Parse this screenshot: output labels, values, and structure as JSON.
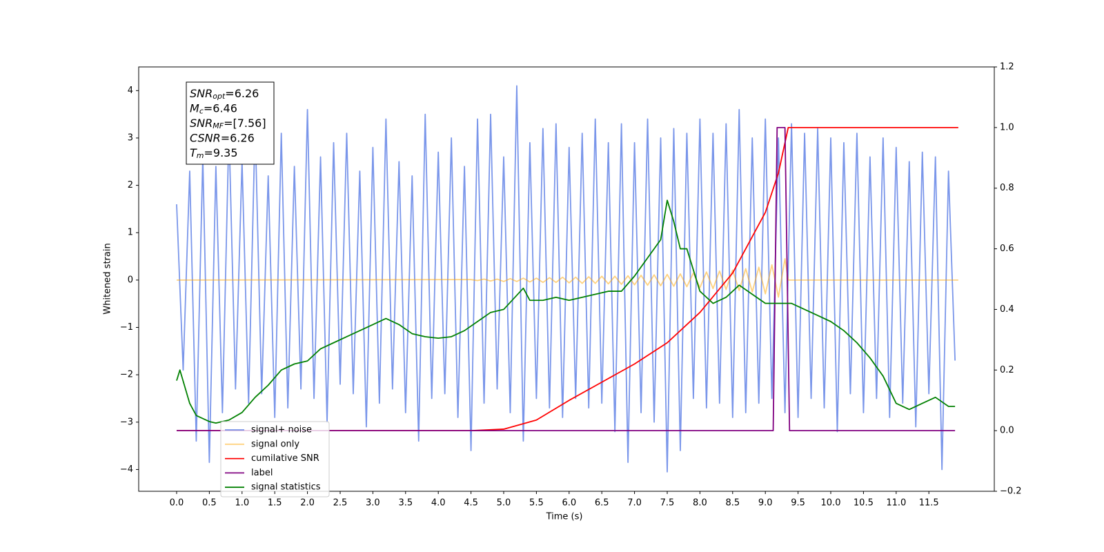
{
  "chart_data": {
    "type": "line",
    "x_label": "Time (s)",
    "y_label": "Whitened strain",
    "xlim": [
      -0.58,
      12.5
    ],
    "xticks": [
      {
        "value": 0,
        "label": "0.0"
      },
      0.5,
      {
        "value": 1,
        "label": "1.0"
      },
      1.5,
      {
        "value": 2,
        "label": "2.0"
      },
      2.5,
      {
        "value": 3,
        "label": "3.0"
      },
      3.5,
      {
        "value": 4,
        "label": "4.0"
      },
      4.5,
      {
        "value": 5,
        "label": "5.0"
      },
      5.5,
      {
        "value": 6,
        "label": "6.0"
      },
      6.5,
      {
        "value": 7,
        "label": "7.0"
      },
      7.5,
      {
        "value": 8,
        "label": "8.0"
      },
      8.5,
      {
        "value": 9,
        "label": "9.0"
      },
      9.5,
      {
        "value": 10,
        "label": "10.0"
      },
      10.5,
      {
        "value": 11,
        "label": "11.0"
      },
      11.5
    ],
    "ylim": [
      -4.46,
      4.5
    ],
    "yticks": [
      {
        "value": -4,
        "label": "−4"
      },
      {
        "value": -3,
        "label": "−3"
      },
      {
        "value": -2,
        "label": "−2"
      },
      {
        "value": -1,
        "label": "−1"
      },
      0,
      1,
      2,
      3,
      4
    ],
    "y2lim": [
      -0.2,
      1.2
    ],
    "y2ticks": [
      {
        "value": -0.2,
        "label": "−0.2"
      },
      {
        "value": 0,
        "label": "0.0"
      },
      0.2,
      0.4,
      0.6,
      0.8,
      {
        "value": 1,
        "label": "1.0"
      },
      1.2
    ],
    "annotations": [
      {
        "symbol": "SNR",
        "subscript": "opt",
        "text": "=6.26"
      },
      {
        "symbol": "M",
        "subscript": "c",
        "text": "=6.46"
      },
      {
        "symbol": "SNR",
        "subscript": "MF",
        "text": "=[7.56]"
      },
      {
        "symbol": "CSNR",
        "text": "=6.26"
      },
      {
        "symbol": "T",
        "subscript": "m",
        "text": "=9.35"
      }
    ],
    "series": [
      {
        "name": "signal+ noise",
        "color": "#4169e1",
        "alpha": 0.7,
        "x": [
          0.0,
          0.1,
          0.2,
          0.3,
          0.4,
          0.5,
          0.6,
          0.7,
          0.8,
          0.9,
          1.0,
          1.1,
          1.2,
          1.3,
          1.4,
          1.5,
          1.6,
          1.7,
          1.8,
          1.9,
          2.0,
          2.1,
          2.2,
          2.3,
          2.4,
          2.5,
          2.6,
          2.7,
          2.8,
          2.9,
          3.0,
          3.1,
          3.2,
          3.3,
          3.4,
          3.5,
          3.6,
          3.7,
          3.8,
          3.9,
          4.0,
          4.1,
          4.2,
          4.3,
          4.4,
          4.5,
          4.6,
          4.7,
          4.8,
          4.9,
          5.0,
          5.1,
          5.2,
          5.3,
          5.4,
          5.5,
          5.6,
          5.7,
          5.8,
          5.9,
          6.0,
          6.1,
          6.2,
          6.3,
          6.4,
          6.5,
          6.6,
          6.7,
          6.8,
          6.9,
          7.0,
          7.1,
          7.2,
          7.3,
          7.4,
          7.5,
          7.6,
          7.7,
          7.8,
          7.9,
          8.0,
          8.1,
          8.2,
          8.3,
          8.4,
          8.5,
          8.6,
          8.7,
          8.8,
          8.9,
          9.0,
          9.1,
          9.2,
          9.3,
          9.4,
          9.5,
          9.6,
          9.7,
          9.8,
          9.9,
          10.0,
          10.1,
          10.2,
          10.3,
          10.4,
          10.5,
          10.6,
          10.7,
          10.8,
          10.9,
          11.0,
          11.1,
          11.2,
          11.3,
          11.4,
          11.5,
          11.6,
          11.7,
          11.8,
          11.9
        ],
        "values": [
          1.6,
          -1.9,
          2.3,
          -3.4,
          2.6,
          -3.85,
          2.4,
          -2.8,
          3.2,
          -2.3,
          2.5,
          -2.6,
          3.3,
          -2.4,
          2.2,
          -2.9,
          3.1,
          -2.7,
          2.4,
          -2.3,
          3.6,
          -2.5,
          2.6,
          -3.0,
          2.9,
          -2.2,
          3.1,
          -2.4,
          2.3,
          -3.1,
          2.8,
          -2.6,
          3.4,
          -2.3,
          2.5,
          -2.8,
          2.2,
          -3.4,
          3.5,
          -2.5,
          2.7,
          -2.4,
          3.0,
          -2.9,
          2.4,
          -3.6,
          3.4,
          -2.6,
          3.5,
          -2.3,
          2.6,
          -2.8,
          4.1,
          -3.4,
          2.9,
          -2.5,
          3.2,
          -2.7,
          3.3,
          -2.9,
          2.8,
          -2.5,
          3.1,
          -2.7,
          3.4,
          -2.6,
          2.9,
          -3.2,
          3.3,
          -3.85,
          2.9,
          -2.8,
          3.4,
          -3.0,
          3.0,
          -4.05,
          3.2,
          -3.6,
          3.1,
          -2.5,
          3.4,
          -2.7,
          3.1,
          -2.6,
          3.3,
          -2.9,
          3.6,
          -2.8,
          3.0,
          -2.6,
          3.4,
          -2.5,
          3.0,
          -2.8,
          3.3,
          -2.9,
          3.1,
          -2.5,
          3.2,
          -2.7,
          3.0,
          -3.2,
          2.9,
          -2.4,
          3.1,
          -2.8,
          2.6,
          -2.5,
          3.0,
          -2.9,
          2.8,
          -2.6,
          2.5,
          -3.1,
          2.7,
          -2.4,
          2.6,
          -4.0,
          2.3,
          -1.7
        ]
      },
      {
        "name": "signal only",
        "color": "#ffa500",
        "alpha": 0.5,
        "x": [
          0.0,
          4.5,
          4.6,
          4.7,
          4.8,
          4.9,
          5.0,
          5.1,
          5.2,
          5.3,
          5.4,
          5.5,
          5.6,
          5.7,
          5.8,
          5.9,
          6.0,
          6.1,
          6.2,
          6.3,
          6.4,
          6.5,
          6.6,
          6.7,
          6.8,
          6.9,
          7.0,
          7.1,
          7.2,
          7.3,
          7.4,
          7.5,
          7.6,
          7.7,
          7.8,
          7.9,
          8.0,
          8.1,
          8.2,
          8.3,
          8.4,
          8.5,
          8.6,
          8.7,
          8.8,
          8.9,
          9.0,
          9.1,
          9.2,
          9.3,
          9.35,
          11.95
        ],
        "values": [
          0,
          0.01,
          -0.01,
          0.02,
          -0.02,
          0.02,
          -0.03,
          0.03,
          -0.03,
          0.04,
          -0.04,
          0.04,
          -0.05,
          0.05,
          -0.05,
          0.06,
          -0.06,
          0.06,
          -0.07,
          0.07,
          -0.07,
          0.08,
          -0.08,
          0.08,
          -0.09,
          0.09,
          -0.1,
          0.1,
          -0.11,
          0.11,
          -0.12,
          0.12,
          -0.13,
          0.13,
          -0.14,
          0.15,
          -0.16,
          0.17,
          -0.18,
          0.19,
          -0.2,
          0.21,
          -0.22,
          0.24,
          -0.25,
          0.27,
          -0.29,
          0.32,
          -0.36,
          0.45,
          0,
          0
        ]
      },
      {
        "name": "cumilative SNR",
        "color": "#ff0000",
        "axis": "y2",
        "x": [
          0.0,
          4.5,
          5.0,
          5.5,
          6.0,
          6.5,
          7.0,
          7.5,
          8.0,
          8.5,
          9.0,
          9.2,
          9.35,
          11.95
        ],
        "values": [
          0,
          0,
          0.005,
          0.035,
          0.1,
          0.16,
          0.22,
          0.29,
          0.39,
          0.52,
          0.72,
          0.85,
          1.0,
          1.0
        ]
      },
      {
        "name": "label",
        "color": "#800080",
        "axis": "y2",
        "x": [
          0.0,
          9.12,
          9.18,
          9.3,
          9.37,
          11.9
        ],
        "values": [
          0,
          0,
          1,
          1,
          0,
          0
        ]
      },
      {
        "name": "signal statistics",
        "color": "#008000",
        "axis": "y2",
        "x": [
          0,
          0.05,
          0.2,
          0.3,
          0.5,
          0.6,
          0.8,
          1.0,
          1.2,
          1.4,
          1.6,
          1.8,
          2.0,
          2.2,
          2.4,
          2.6,
          2.8,
          3.0,
          3.2,
          3.4,
          3.6,
          3.8,
          4.0,
          4.2,
          4.4,
          4.6,
          4.8,
          5.0,
          5.3,
          5.4,
          5.6,
          5.8,
          6.0,
          6.2,
          6.4,
          6.6,
          6.8,
          7.0,
          7.2,
          7.4,
          7.5,
          7.6,
          7.7,
          7.8,
          8.0,
          8.2,
          8.4,
          8.6,
          8.8,
          9.0,
          9.2,
          9.4,
          9.6,
          9.8,
          10.0,
          10.2,
          10.4,
          10.6,
          10.8,
          11.0,
          11.2,
          11.4,
          11.6,
          11.8,
          11.9
        ],
        "values": [
          0.165,
          0.2,
          0.09,
          0.05,
          0.03,
          0.025,
          0.035,
          0.06,
          0.11,
          0.15,
          0.2,
          0.22,
          0.23,
          0.27,
          0.29,
          0.31,
          0.33,
          0.35,
          0.37,
          0.35,
          0.32,
          0.31,
          0.305,
          0.31,
          0.33,
          0.36,
          0.39,
          0.4,
          0.47,
          0.43,
          0.43,
          0.44,
          0.43,
          0.44,
          0.45,
          0.46,
          0.46,
          0.51,
          0.57,
          0.63,
          0.76,
          0.69,
          0.6,
          0.6,
          0.46,
          0.42,
          0.44,
          0.48,
          0.45,
          0.42,
          0.42,
          0.42,
          0.4,
          0.38,
          0.36,
          0.33,
          0.29,
          0.24,
          0.18,
          0.09,
          0.07,
          0.09,
          0.11,
          0.08,
          0.08
        ]
      }
    ]
  }
}
